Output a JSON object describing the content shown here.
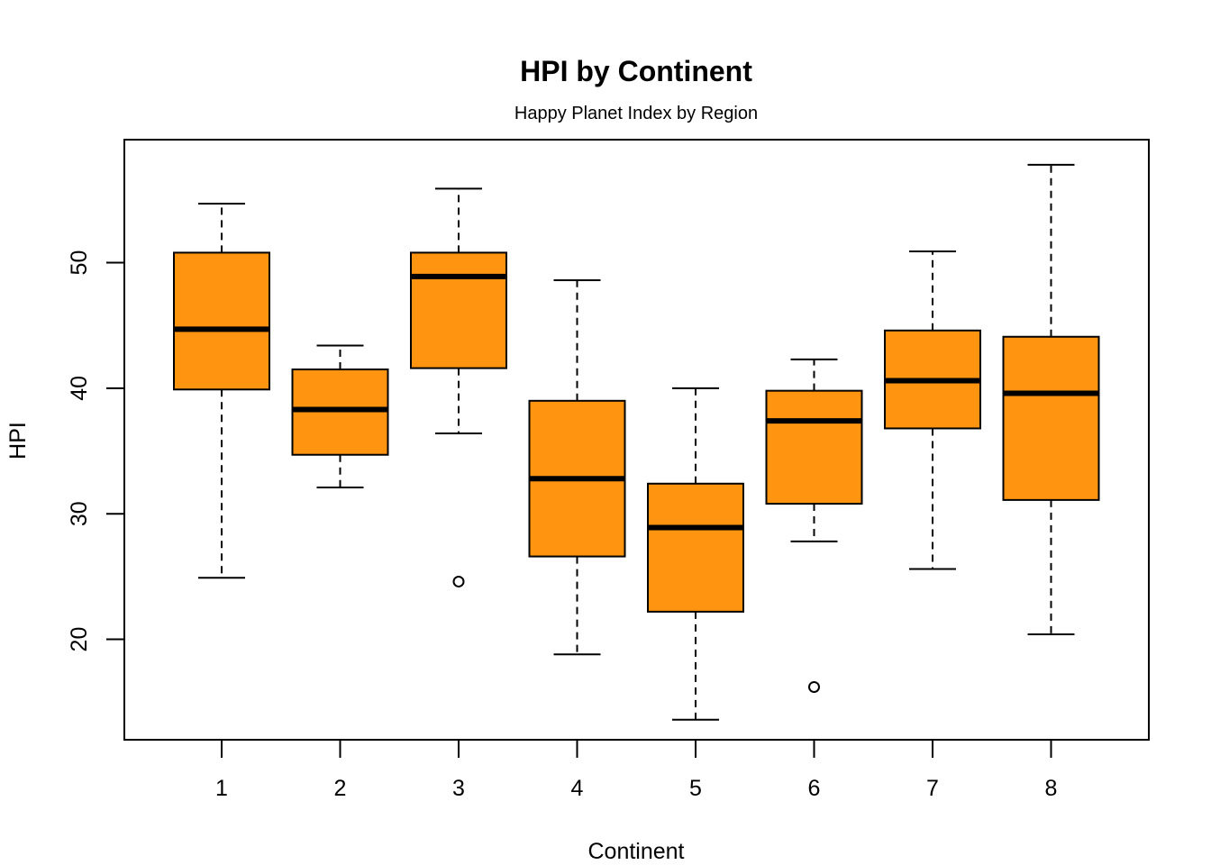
{
  "chart_data": {
    "type": "boxplot",
    "title": "HPI by Continent",
    "subtitle": "Happy Planet Index by Region",
    "xlabel": "Continent",
    "ylabel": "HPI",
    "categories": [
      "1",
      "2",
      "3",
      "4",
      "5",
      "6",
      "7",
      "8"
    ],
    "yticks": [
      "20",
      "30",
      "40",
      "50"
    ],
    "ylim": [
      12.0,
      59.8
    ],
    "grid": false,
    "legend": "none",
    "box_fill": "#FF9410",
    "box_stroke": "#000000",
    "whisker_style": "dashed",
    "boxes": [
      {
        "category": "1",
        "min": 24.9,
        "q1": 39.9,
        "median": 44.7,
        "q3": 50.8,
        "max": 54.7,
        "outliers": []
      },
      {
        "category": "2",
        "min": 32.1,
        "q1": 34.7,
        "median": 38.3,
        "q3": 41.5,
        "max": 43.4,
        "outliers": []
      },
      {
        "category": "3",
        "min": 36.4,
        "q1": 41.6,
        "median": 48.9,
        "q3": 50.8,
        "max": 55.9,
        "outliers": [
          24.6
        ]
      },
      {
        "category": "4",
        "min": 18.8,
        "q1": 26.6,
        "median": 32.8,
        "q3": 39.0,
        "max": 48.6,
        "outliers": []
      },
      {
        "category": "5",
        "min": 13.6,
        "q1": 22.2,
        "median": 28.9,
        "q3": 32.4,
        "max": 40.0,
        "outliers": []
      },
      {
        "category": "6",
        "min": 27.8,
        "q1": 30.8,
        "median": 37.4,
        "q3": 39.8,
        "max": 42.3,
        "outliers": [
          16.2
        ]
      },
      {
        "category": "7",
        "min": 25.6,
        "q1": 36.8,
        "median": 40.6,
        "q3": 44.6,
        "max": 50.9,
        "outliers": []
      },
      {
        "category": "8",
        "min": 20.4,
        "q1": 31.1,
        "median": 39.6,
        "q3": 44.1,
        "max": 57.8,
        "outliers": []
      }
    ]
  }
}
